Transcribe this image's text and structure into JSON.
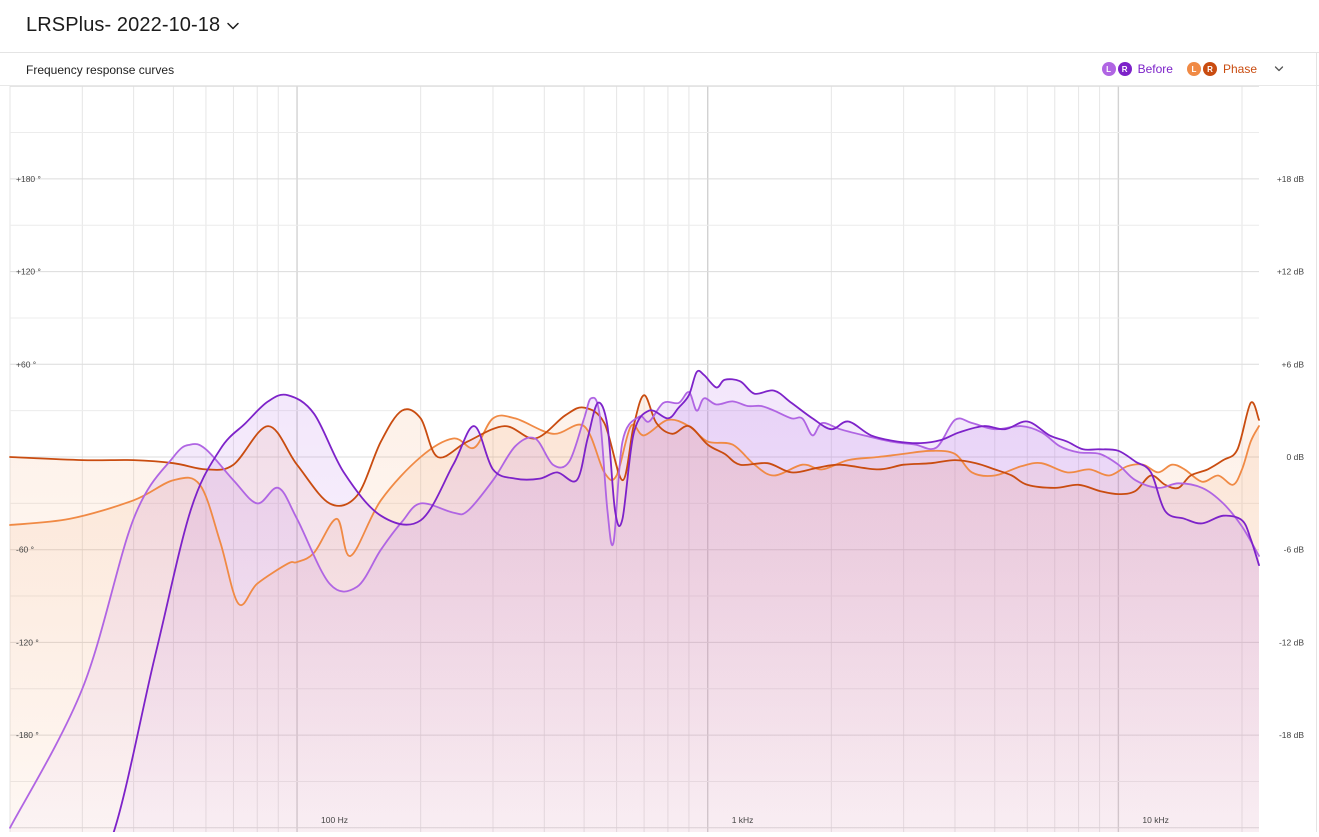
{
  "header": {
    "title": "LRSPlus- 2022-10-18"
  },
  "panel": {
    "title": "Frequency response curves"
  },
  "legend": {
    "before": {
      "label": "Before",
      "left": "L",
      "right": "R",
      "color_left": "#b065e3",
      "color_right": "#7d22c9"
    },
    "phase": {
      "label": "Phase",
      "left": "L",
      "right": "R",
      "color_left": "#f08a45",
      "color_right": "#c94c10"
    }
  },
  "chart_data": {
    "type": "line",
    "x_scale": "log",
    "xlim": [
      20,
      22000
    ],
    "x_ticks": [
      {
        "value": 100,
        "label": "100 Hz"
      },
      {
        "value": 1000,
        "label": "1 kHz"
      },
      {
        "value": 10000,
        "label": "10 kHz"
      }
    ],
    "y_left_ticks": [
      {
        "value": 180,
        "label": "+180 °"
      },
      {
        "value": 120,
        "label": "+120 °"
      },
      {
        "value": 60,
        "label": "+60 °"
      },
      {
        "value": -60,
        "label": "-60 °"
      },
      {
        "value": -120,
        "label": "-120 °"
      },
      {
        "value": -180,
        "label": "-180 °"
      }
    ],
    "y_right_ticks": [
      {
        "value": 18,
        "label": "+18 dB"
      },
      {
        "value": 12,
        "label": "+12 dB"
      },
      {
        "value": 6,
        "label": "+6 dB"
      },
      {
        "value": 0,
        "label": "0 dB"
      },
      {
        "value": -6,
        "label": "-6 dB"
      },
      {
        "value": -12,
        "label": "-12 dB"
      },
      {
        "value": -18,
        "label": "-18 dB"
      }
    ],
    "ylim_db": [
      -24,
      24
    ],
    "ylim_deg": [
      -240,
      240
    ],
    "grid": true,
    "series": [
      {
        "name": "Before",
        "channel": "L",
        "axis": "dB",
        "color": "#b065e3",
        "fill": true,
        "points": [
          [
            20,
            -24
          ],
          [
            30,
            -15
          ],
          [
            40,
            -4
          ],
          [
            50,
            0
          ],
          [
            55,
            0.8
          ],
          [
            60,
            0.5
          ],
          [
            70,
            -1.5
          ],
          [
            80,
            -3
          ],
          [
            90,
            -2
          ],
          [
            100,
            -4
          ],
          [
            120,
            -8.2
          ],
          [
            140,
            -8.4
          ],
          [
            160,
            -6
          ],
          [
            180,
            -4.2
          ],
          [
            200,
            -3
          ],
          [
            240,
            -3.6
          ],
          [
            260,
            -3.5
          ],
          [
            300,
            -1.5
          ],
          [
            340,
            0.7
          ],
          [
            380,
            1.2
          ],
          [
            420,
            -0.5
          ],
          [
            460,
            -0.3
          ],
          [
            500,
            2.5
          ],
          [
            520,
            3.8
          ],
          [
            545,
            2.8
          ],
          [
            570,
            -3.5
          ],
          [
            590,
            -5.5
          ],
          [
            620,
            1
          ],
          [
            680,
            2.6
          ],
          [
            720,
            2.3
          ],
          [
            780,
            3.5
          ],
          [
            850,
            3.5
          ],
          [
            900,
            4.2
          ],
          [
            940,
            3
          ],
          [
            980,
            3.8
          ],
          [
            1050,
            3.4
          ],
          [
            1150,
            3.6
          ],
          [
            1250,
            3.3
          ],
          [
            1350,
            3.3
          ],
          [
            1450,
            3
          ],
          [
            1600,
            2.5
          ],
          [
            1700,
            2.5
          ],
          [
            1800,
            1.4
          ],
          [
            1900,
            2.2
          ],
          [
            2100,
            1.8
          ],
          [
            2400,
            1.4
          ],
          [
            2800,
            1
          ],
          [
            3200,
            0.8
          ],
          [
            3600,
            0.6
          ],
          [
            4000,
            2.4
          ],
          [
            4400,
            2.2
          ],
          [
            5000,
            1.8
          ],
          [
            5800,
            2
          ],
          [
            6500,
            1.6
          ],
          [
            7200,
            0.7
          ],
          [
            8000,
            0.3
          ],
          [
            9000,
            0.2
          ],
          [
            10000,
            -0.5
          ],
          [
            11000,
            -1.5
          ],
          [
            12500,
            -2
          ],
          [
            14000,
            -1.7
          ],
          [
            16000,
            -2
          ],
          [
            18000,
            -3
          ],
          [
            20000,
            -4.5
          ],
          [
            22000,
            -6.4
          ]
        ]
      },
      {
        "name": "Before",
        "channel": "R",
        "axis": "dB",
        "color": "#7d22c9",
        "fill": true,
        "points": [
          [
            20,
            -36
          ],
          [
            28,
            -31
          ],
          [
            35,
            -25
          ],
          [
            45,
            -13
          ],
          [
            55,
            -3.5
          ],
          [
            65,
            0.5
          ],
          [
            75,
            2.2
          ],
          [
            85,
            3.6
          ],
          [
            95,
            4
          ],
          [
            110,
            2.8
          ],
          [
            130,
            -1
          ],
          [
            160,
            -3.8
          ],
          [
            200,
            -4.1
          ],
          [
            240,
            -0.5
          ],
          [
            270,
            2
          ],
          [
            300,
            -0.8
          ],
          [
            340,
            -1.4
          ],
          [
            390,
            -1.4
          ],
          [
            430,
            -1
          ],
          [
            480,
            -1.5
          ],
          [
            510,
            1.2
          ],
          [
            540,
            3.5
          ],
          [
            570,
            2
          ],
          [
            595,
            -3.5
          ],
          [
            620,
            -4
          ],
          [
            660,
            1.5
          ],
          [
            720,
            3
          ],
          [
            800,
            2.5
          ],
          [
            850,
            3.2
          ],
          [
            900,
            4
          ],
          [
            940,
            5.5
          ],
          [
            980,
            5.3
          ],
          [
            1050,
            4.5
          ],
          [
            1100,
            5
          ],
          [
            1200,
            4.9
          ],
          [
            1300,
            4.1
          ],
          [
            1450,
            4.3
          ],
          [
            1600,
            3.5
          ],
          [
            1800,
            2.5
          ],
          [
            2000,
            1.8
          ],
          [
            2200,
            2.3
          ],
          [
            2500,
            1.4
          ],
          [
            2900,
            1
          ],
          [
            3300,
            0.9
          ],
          [
            3700,
            1.1
          ],
          [
            4100,
            1.6
          ],
          [
            4700,
            2
          ],
          [
            5300,
            1.8
          ],
          [
            6000,
            2.3
          ],
          [
            6800,
            1.4
          ],
          [
            7500,
            1
          ],
          [
            8200,
            0.5
          ],
          [
            9000,
            0.5
          ],
          [
            10000,
            0.4
          ],
          [
            11000,
            -0.3
          ],
          [
            12000,
            -1
          ],
          [
            13000,
            -3.5
          ],
          [
            14500,
            -4
          ],
          [
            16000,
            -4.3
          ],
          [
            18000,
            -3.8
          ],
          [
            20000,
            -4.1
          ],
          [
            21000,
            -5.3
          ],
          [
            22000,
            -7
          ]
        ]
      },
      {
        "name": "Phase",
        "channel": "L",
        "axis": "deg",
        "color": "#f08a45",
        "fill": true,
        "points": [
          [
            20,
            -44
          ],
          [
            28,
            -40
          ],
          [
            40,
            -28
          ],
          [
            50,
            -15
          ],
          [
            58,
            -18
          ],
          [
            65,
            -55
          ],
          [
            72,
            -95
          ],
          [
            80,
            -82
          ],
          [
            95,
            -69
          ],
          [
            100,
            -68
          ],
          [
            110,
            -62
          ],
          [
            125,
            -40
          ],
          [
            135,
            -64
          ],
          [
            160,
            -28
          ],
          [
            200,
            0
          ],
          [
            240,
            12
          ],
          [
            270,
            6
          ],
          [
            300,
            25
          ],
          [
            340,
            25
          ],
          [
            420,
            15
          ],
          [
            500,
            20
          ],
          [
            560,
            -10
          ],
          [
            600,
            -12
          ],
          [
            650,
            20
          ],
          [
            700,
            14
          ],
          [
            800,
            24
          ],
          [
            900,
            20
          ],
          [
            1000,
            10
          ],
          [
            1150,
            8
          ],
          [
            1300,
            -5
          ],
          [
            1450,
            -12
          ],
          [
            1700,
            -5
          ],
          [
            1900,
            -8
          ],
          [
            2200,
            -2
          ],
          [
            2600,
            0
          ],
          [
            3000,
            2
          ],
          [
            3500,
            4
          ],
          [
            4000,
            2
          ],
          [
            4400,
            -10
          ],
          [
            5000,
            -12
          ],
          [
            5800,
            -6
          ],
          [
            6500,
            -4
          ],
          [
            7500,
            -10
          ],
          [
            8500,
            -8
          ],
          [
            9500,
            -12
          ],
          [
            10500,
            -6
          ],
          [
            11500,
            -5
          ],
          [
            12500,
            -10
          ],
          [
            13500,
            -5
          ],
          [
            14500,
            -8
          ],
          [
            16000,
            -16
          ],
          [
            17500,
            -12
          ],
          [
            19000,
            -18
          ],
          [
            20000,
            -8
          ],
          [
            21000,
            10
          ],
          [
            22000,
            20
          ]
        ]
      },
      {
        "name": "Phase",
        "channel": "R",
        "axis": "deg",
        "color": "#c94c10",
        "fill": true,
        "points": [
          [
            20,
            0
          ],
          [
            30,
            -2
          ],
          [
            40,
            -2
          ],
          [
            50,
            -4
          ],
          [
            60,
            -8
          ],
          [
            70,
            -5
          ],
          [
            85,
            20
          ],
          [
            100,
            -5
          ],
          [
            120,
            -30
          ],
          [
            140,
            -25
          ],
          [
            160,
            10
          ],
          [
            180,
            30
          ],
          [
            200,
            25
          ],
          [
            220,
            0
          ],
          [
            260,
            10
          ],
          [
            320,
            20
          ],
          [
            380,
            12
          ],
          [
            450,
            27
          ],
          [
            500,
            32
          ],
          [
            560,
            22
          ],
          [
            620,
            -15
          ],
          [
            660,
            20
          ],
          [
            700,
            40
          ],
          [
            750,
            22
          ],
          [
            820,
            15
          ],
          [
            900,
            20
          ],
          [
            1000,
            8
          ],
          [
            1100,
            2
          ],
          [
            1200,
            -5
          ],
          [
            1400,
            -4
          ],
          [
            1600,
            -10
          ],
          [
            1850,
            -7
          ],
          [
            2100,
            -5
          ],
          [
            2600,
            -8
          ],
          [
            3000,
            -5
          ],
          [
            3500,
            -4
          ],
          [
            4000,
            -2
          ],
          [
            4500,
            -4
          ],
          [
            5000,
            -8
          ],
          [
            5500,
            -12
          ],
          [
            6000,
            -18
          ],
          [
            7000,
            -20
          ],
          [
            8000,
            -18
          ],
          [
            9000,
            -22
          ],
          [
            10000,
            -24
          ],
          [
            11000,
            -22
          ],
          [
            12000,
            -12
          ],
          [
            13000,
            -18
          ],
          [
            14000,
            -20
          ],
          [
            15000,
            -12
          ],
          [
            16500,
            -8
          ],
          [
            18000,
            -2
          ],
          [
            19500,
            5
          ],
          [
            21000,
            35
          ],
          [
            22000,
            24
          ]
        ]
      }
    ]
  }
}
